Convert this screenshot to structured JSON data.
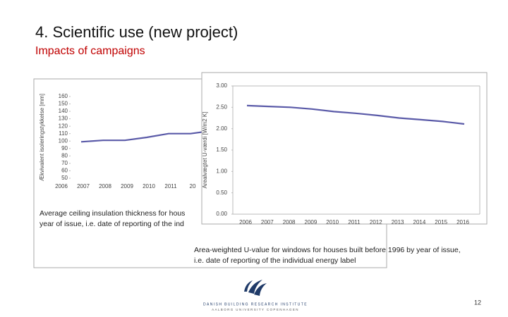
{
  "title": "4. Scientific use (new project)",
  "subtitle": "Impacts of campaigns",
  "page_number": "12",
  "logo": [
    "DANISH BUILDING RESEARCH INSTITUTE",
    "AALBORG UNIVERSITY COPENHAGEN"
  ],
  "chart_data": [
    {
      "type": "line",
      "y_label": "Ækvivalent isoleringstykkelse [mm]",
      "categories": [
        "2006",
        "2007",
        "2008",
        "2009",
        "2010",
        "2011",
        "20"
      ],
      "series": [
        {
          "color": "#5a5aa8",
          "values": [
            99,
            101,
            101,
            105,
            110,
            110,
            114
          ]
        }
      ],
      "ylim": [
        50,
        160
      ],
      "yticks": [
        160,
        150,
        140,
        130,
        120,
        110,
        100,
        90,
        80,
        70,
        60,
        50
      ],
      "caption": [
        "Average ceiling insulation thickness for hous",
        "year of issue, i.e. date of reporting of the ind"
      ]
    },
    {
      "type": "line",
      "y_label": "Arealvægtet U-værdi [W/m2 K]",
      "categories": [
        "2006",
        "2007",
        "2008",
        "2009",
        "2010",
        "2011",
        "2012",
        "2013",
        "2014",
        "2015",
        "2016"
      ],
      "series": [
        {
          "color": "#5a5aa8",
          "values": [
            2.54,
            2.52,
            2.5,
            2.46,
            2.4,
            2.36,
            2.31,
            2.25,
            2.21,
            2.17,
            2.11
          ]
        }
      ],
      "ylim": [
        0,
        3
      ],
      "yticks": [
        {
          "value": 0,
          "label": "0.00"
        },
        {
          "value": 0.5,
          "label": "0.50"
        },
        {
          "value": 1,
          "label": "1.00"
        },
        {
          "value": 1.5,
          "label": "1.50"
        },
        {
          "value": 2,
          "label": "2.00"
        },
        {
          "value": 2.5,
          "label": "2.50"
        },
        {
          "value": 3,
          "label": "3.00"
        }
      ],
      "caption": [
        "Area-weighted U-value for windows for houses built before 1996 by year of issue,",
        "i.e. date of reporting of the individual energy label"
      ]
    }
  ]
}
